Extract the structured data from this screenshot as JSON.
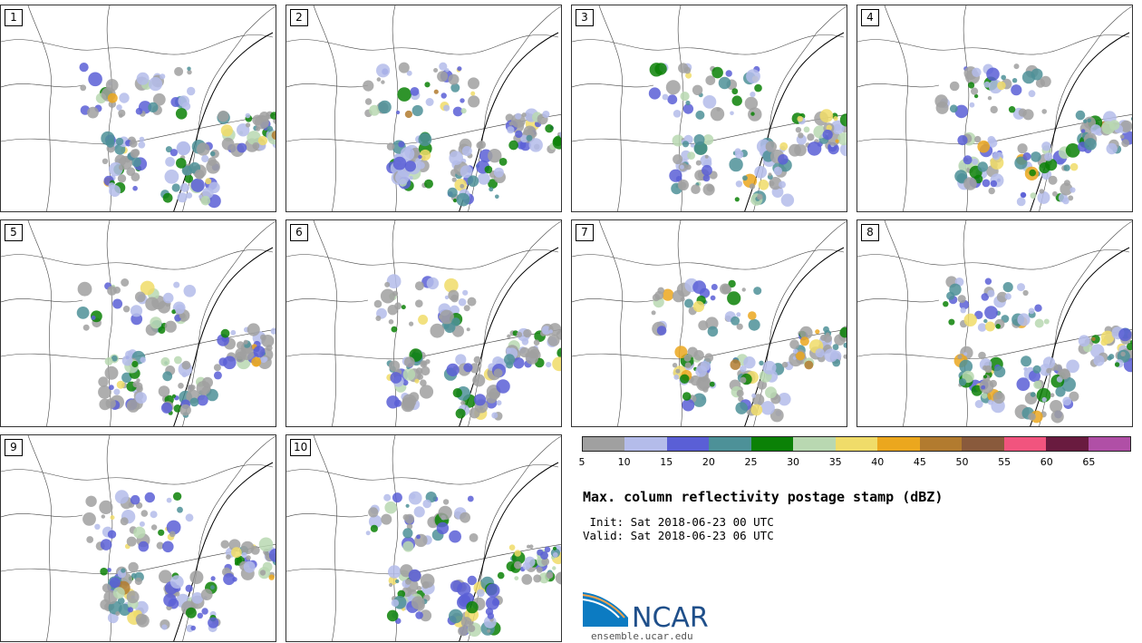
{
  "panels": [
    {
      "label": "1"
    },
    {
      "label": "2"
    },
    {
      "label": "3"
    },
    {
      "label": "4"
    },
    {
      "label": "5"
    },
    {
      "label": "6"
    },
    {
      "label": "7"
    },
    {
      "label": "8"
    },
    {
      "label": "9"
    },
    {
      "label": "10"
    }
  ],
  "colorbar": {
    "colors": [
      "#a0a0a0",
      "#b4bcea",
      "#5a5fd6",
      "#4d9198",
      "#0b8106",
      "#b9d8b1",
      "#f0dc69",
      "#eba71e",
      "#b27b2f",
      "#895a3c",
      "#f1547e",
      "#691b3f",
      "#b04fa6"
    ],
    "ticks": [
      "5",
      "10",
      "15",
      "20",
      "25",
      "30",
      "35",
      "40",
      "45",
      "50",
      "55",
      "60",
      "65"
    ]
  },
  "title": "Max. column reflectivity postage stamp (dBZ)",
  "init_line": " Init: Sat 2018-06-23 00 UTC",
  "valid_line": "Valid: Sat 2018-06-23 06 UTC",
  "logo_text": "NCAR",
  "site": "ensemble.ucar.edu"
}
